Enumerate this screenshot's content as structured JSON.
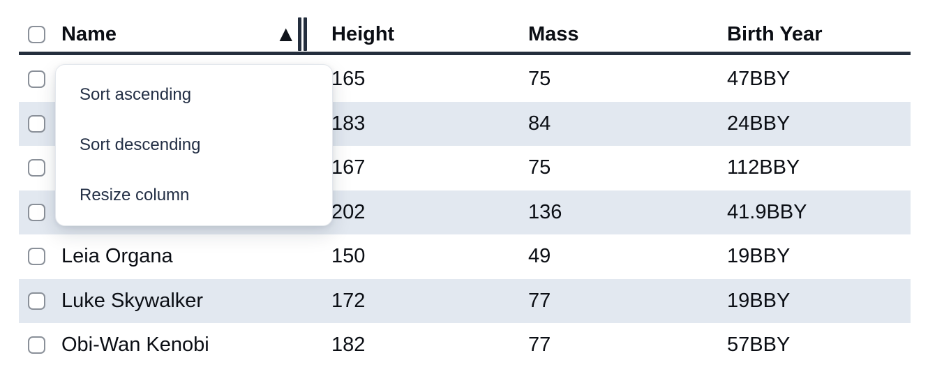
{
  "table": {
    "columns": [
      "Name",
      "Height",
      "Mass",
      "Birth Year"
    ],
    "sorted_column": "Name",
    "sort_direction": "ascending",
    "sort_indicator": "▲",
    "select_all_checked": false,
    "rows": [
      {
        "name": "",
        "height": "165",
        "mass": "75",
        "birth_year": "47BBY",
        "checked": false,
        "name_occluded_by_menu": true
      },
      {
        "name": "",
        "height": "183",
        "mass": "84",
        "birth_year": "24BBY",
        "checked": false,
        "name_occluded_by_menu": true
      },
      {
        "name": "",
        "height": "167",
        "mass": "75",
        "birth_year": "112BBY",
        "checked": false,
        "name_occluded_by_menu": true
      },
      {
        "name": "",
        "height": "202",
        "mass": "136",
        "birth_year": "41.9BBY",
        "checked": false,
        "name_occluded_by_menu": true
      },
      {
        "name": "Leia Organa",
        "height": "150",
        "mass": "49",
        "birth_year": "19BBY",
        "checked": false
      },
      {
        "name": "Luke Skywalker",
        "height": "172",
        "mass": "77",
        "birth_year": "19BBY",
        "checked": false
      },
      {
        "name": "Obi-Wan Kenobi",
        "height": "182",
        "mass": "77",
        "birth_year": "57BBY",
        "checked": false
      }
    ]
  },
  "column_menu": {
    "items": [
      "Sort ascending",
      "Sort descending",
      "Resize column"
    ]
  },
  "colors": {
    "stripe_row_bg": "#e2e8f0",
    "header_border": "#242e3d",
    "text": "#0b0e14",
    "menu_text": "#232f45",
    "checkbox_border": "#8a9099"
  }
}
